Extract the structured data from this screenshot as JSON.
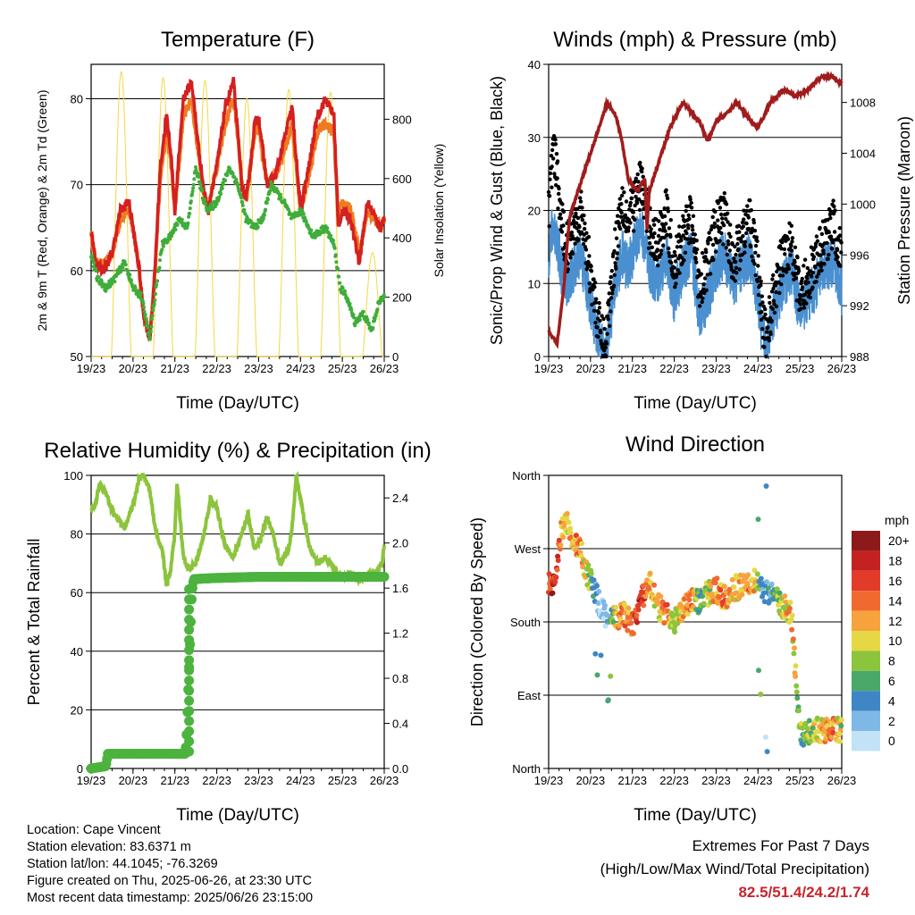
{
  "x_ticks": [
    "19/23",
    "20/23",
    "21/23",
    "22/23",
    "23/23",
    "24/23",
    "25/23",
    "26/23"
  ],
  "x_label": "Time (Day/UTC)",
  "info": {
    "location": "Location: Cape Vincent",
    "elevation": "Station elevation: 83.6371 m",
    "latlon": "Station lat/lon: 44.1045; -76.3269",
    "created": "Figure created on Thu, 2025-06-26, at 23:30 UTC",
    "recent": "Most recent data timestamp: 2025/06/26 23:15:00"
  },
  "extremes": {
    "title": "Extremes For Past 7 Days",
    "subtitle": "(High/Low/Max Wind/Total Precipitation)",
    "values": "82.5/51.4/24.2/1.74"
  },
  "colors": {
    "temp2m": "#d42020",
    "temp9m": "#f07a20",
    "dewpoint": "#3fad3a",
    "solar": "#f5d742",
    "wind": "#4a90d0",
    "gust": "#000000",
    "pressure": "#a01c1c",
    "rh": "#8cc43c",
    "precip": "#4cb33e",
    "extremes": "#c8242b"
  },
  "chart_data": [
    {
      "type": "line",
      "title": "Temperature (F)",
      "xlabel": "Time (Day/UTC)",
      "ylabel": "2m & 9m T (Red, Orange) & 2m Td (Green)",
      "ylabel_right": "Solar Insolation (Yellow)",
      "ylim": [
        50,
        84
      ],
      "yticks": [
        50,
        60,
        70,
        80
      ],
      "ylim_right": [
        0,
        985
      ],
      "yticks_right": [
        0,
        200,
        400,
        600,
        800
      ],
      "x_range_days": [
        0,
        7
      ],
      "grid": true,
      "series": [
        {
          "name": "2m T",
          "axis": "left",
          "x": [
            0,
            0.1,
            0.3,
            0.5,
            0.7,
            0.9,
            1.0,
            1.15,
            1.25,
            1.4,
            1.5,
            1.65,
            1.8,
            1.9,
            2.0,
            2.2,
            2.4,
            2.55,
            2.7,
            2.8,
            2.9,
            3.0,
            3.2,
            3.4,
            3.5,
            3.6,
            3.7,
            3.8,
            3.9,
            4.0,
            4.2,
            4.4,
            4.6,
            4.8,
            4.9,
            5.0,
            5.2,
            5.4,
            5.6,
            5.8,
            5.9,
            6.0,
            6.2,
            6.4,
            6.6,
            6.8,
            6.9,
            7.0
          ],
          "values": [
            65,
            61,
            60,
            62,
            67,
            68,
            65,
            60,
            55,
            52,
            58,
            72,
            78,
            74,
            67,
            80,
            82,
            75,
            69,
            67,
            70,
            72,
            79,
            82,
            76,
            70,
            68,
            72,
            77,
            78,
            70,
            71,
            75,
            79,
            73,
            67,
            72,
            78,
            80,
            78,
            65,
            67,
            66,
            61,
            68,
            66,
            65,
            66
          ]
        },
        {
          "name": "9m T",
          "axis": "left",
          "x": [
            0,
            0.1,
            0.3,
            0.5,
            0.7,
            0.9,
            1.0,
            1.15,
            1.25,
            1.4,
            1.5,
            1.65,
            1.8,
            1.9,
            2.0,
            2.2,
            2.4,
            2.55,
            2.7,
            2.8,
            2.9,
            3.0,
            3.2,
            3.4,
            3.5,
            3.6,
            3.7,
            3.8,
            3.9,
            4.0,
            4.2,
            4.4,
            4.6,
            4.8,
            4.9,
            5.0,
            5.2,
            5.4,
            5.6,
            5.8,
            5.9,
            6.0,
            6.2,
            6.4,
            6.6,
            6.8,
            6.9,
            7.0
          ],
          "values": [
            64.5,
            61,
            60.5,
            62,
            66,
            67,
            65,
            60,
            55,
            52,
            58,
            71,
            76,
            73,
            67,
            78,
            80,
            74,
            69,
            67,
            70,
            72,
            77,
            80,
            76,
            70,
            68,
            72,
            76,
            77,
            70,
            71,
            74,
            77,
            72,
            67,
            71,
            76,
            77,
            76,
            66,
            68,
            67,
            62,
            67,
            66,
            65,
            66
          ]
        },
        {
          "name": "2m Td",
          "axis": "left",
          "x": [
            0,
            0.15,
            0.35,
            0.55,
            0.8,
            1.0,
            1.2,
            1.4,
            1.55,
            1.7,
            1.9,
            2.1,
            2.3,
            2.5,
            2.6,
            2.7,
            2.8,
            3.0,
            3.3,
            3.5,
            3.7,
            3.9,
            4.1,
            4.3,
            4.6,
            4.8,
            5.0,
            5.3,
            5.6,
            5.8,
            5.95,
            6.1,
            6.3,
            6.5,
            6.7,
            6.85,
            7.0
          ],
          "values": [
            62,
            59,
            58,
            59,
            61,
            58,
            57,
            52,
            58,
            63,
            64,
            66,
            65,
            72,
            70,
            68,
            67,
            68,
            72,
            70,
            66,
            65,
            66,
            70,
            68,
            66,
            67,
            64,
            65,
            63,
            58,
            57,
            54,
            55,
            53,
            56,
            57
          ]
        },
        {
          "name": "Solar Insolation",
          "axis": "right",
          "peak_x": [
            0.72,
            1.72,
            2.72,
            3.72,
            4.72,
            5.72,
            6.72
          ],
          "peak_values": [
            960,
            940,
            930,
            870,
            900,
            890,
            350
          ]
        }
      ]
    },
    {
      "type": "scatter",
      "title": "Winds (mph) & Pressure (mb)",
      "xlabel": "Time (Day/UTC)",
      "ylabel": "Sonic/Prop Wind & Gust (Blue, Black)",
      "ylabel_right": "Station Pressure (Maroon)",
      "ylim": [
        0,
        40
      ],
      "yticks": [
        0,
        10,
        20,
        30,
        40
      ],
      "ylim_right": [
        988,
        1011
      ],
      "yticks_right": [
        988,
        992,
        996,
        1000,
        1004,
        1008
      ],
      "x_range_days": [
        0,
        7
      ],
      "grid": true,
      "series": [
        {
          "name": "Wind",
          "axis": "left",
          "x": [
            0,
            0.1,
            0.2,
            0.3,
            0.45,
            0.6,
            0.75,
            0.9,
            1.05,
            1.2,
            1.35,
            1.5,
            1.6,
            1.75,
            1.9,
            2.0,
            2.2,
            2.4,
            2.6,
            2.8,
            3.0,
            3.2,
            3.4,
            3.6,
            3.8,
            4.0,
            4.2,
            4.4,
            4.6,
            4.8,
            5.0,
            5.1,
            5.2,
            5.4,
            5.6,
            5.8,
            6.0,
            6.2,
            6.4,
            6.6,
            6.8,
            7.0
          ],
          "values": [
            14,
            18,
            16,
            12,
            10,
            12,
            14,
            10,
            6,
            2,
            0,
            6,
            10,
            14,
            12,
            14,
            18,
            12,
            10,
            14,
            8,
            12,
            14,
            6,
            8,
            12,
            14,
            10,
            12,
            14,
            8,
            3,
            2,
            6,
            10,
            12,
            6,
            8,
            10,
            12,
            13,
            9
          ]
        },
        {
          "name": "Gust",
          "axis": "left",
          "x": [
            0,
            0.1,
            0.2,
            0.3,
            0.45,
            0.6,
            0.75,
            0.9,
            1.05,
            1.2,
            1.35,
            1.5,
            1.6,
            1.75,
            1.9,
            2.0,
            2.2,
            2.4,
            2.6,
            2.8,
            3.0,
            3.2,
            3.4,
            3.6,
            3.8,
            4.0,
            4.2,
            4.4,
            4.6,
            4.8,
            5.0,
            5.1,
            5.2,
            5.4,
            5.6,
            5.8,
            6.0,
            6.2,
            6.4,
            6.6,
            6.8,
            7.0
          ],
          "values": [
            20,
            28,
            25,
            18,
            15,
            18,
            20,
            15,
            10,
            4,
            1,
            10,
            15,
            22,
            18,
            20,
            24,
            18,
            15,
            20,
            12,
            16,
            19,
            10,
            13,
            18,
            19,
            13,
            16,
            19,
            12,
            5,
            3,
            9,
            14,
            16,
            8,
            11,
            13,
            16,
            18,
            13
          ]
        },
        {
          "name": "Station Pressure",
          "axis": "right",
          "x": [
            0,
            0.2,
            0.35,
            0.5,
            0.8,
            1.1,
            1.4,
            1.6,
            1.75,
            1.9,
            2.1,
            2.3,
            2.35,
            2.4,
            2.6,
            2.9,
            3.2,
            3.6,
            3.8,
            4.0,
            4.2,
            4.5,
            4.7,
            5.0,
            5.3,
            5.6,
            5.9,
            6.2,
            6.5,
            6.8,
            7.0
          ],
          "values": [
            990,
            989,
            993,
            999,
            1002,
            1005,
            1008,
            1007,
            1005,
            1002,
            1001,
            1002,
            998,
            1001,
            1003,
            1006,
            1008,
            1006.5,
            1005,
            1006.5,
            1007,
            1008,
            1007,
            1006,
            1008,
            1009,
            1008.5,
            1009,
            1010,
            1010,
            1009.5
          ]
        }
      ]
    },
    {
      "type": "line",
      "title": "Relative Humidity (%) & Precipitation (in)",
      "xlabel": "Time (Day/UTC)",
      "ylabel": "Percent & Total Rainfall",
      "ylim": [
        0,
        100
      ],
      "yticks": [
        0,
        20,
        40,
        60,
        80,
        100
      ],
      "ylim_right": [
        0,
        2.6
      ],
      "yticks_right": [
        0.0,
        0.4,
        0.8,
        1.2,
        1.6,
        2.0,
        2.4
      ],
      "x_range_days": [
        0,
        7
      ],
      "grid": true,
      "series": [
        {
          "name": "Relative Humidity",
          "axis": "left",
          "x": [
            0,
            0.1,
            0.2,
            0.35,
            0.5,
            0.65,
            0.8,
            1.0,
            1.15,
            1.25,
            1.4,
            1.55,
            1.7,
            1.8,
            1.9,
            2.0,
            2.05,
            2.1,
            2.2,
            2.35,
            2.5,
            2.7,
            2.85,
            3.0,
            3.2,
            3.4,
            3.6,
            3.75,
            3.9,
            4.05,
            4.2,
            4.35,
            4.5,
            4.7,
            4.8,
            4.9,
            5.0,
            5.2,
            5.4,
            5.6,
            5.8,
            6.0,
            6.2,
            6.4,
            6.6,
            6.8,
            6.95,
            7.0
          ],
          "values": [
            88,
            90,
            97,
            94,
            88,
            85,
            82,
            90,
            99,
            100,
            95,
            80,
            75,
            62,
            68,
            80,
            97,
            90,
            72,
            68,
            70,
            80,
            92,
            89,
            76,
            72,
            80,
            87,
            75,
            78,
            86,
            80,
            70,
            74,
            82,
            100,
            92,
            76,
            70,
            72,
            68,
            65,
            67,
            64,
            66,
            67,
            70,
            76
          ]
        },
        {
          "name": "Total Rainfall",
          "axis": "right",
          "x": [
            0,
            0.35,
            0.4,
            1.0,
            2.0,
            2.25,
            2.28,
            2.3,
            2.32,
            2.34,
            2.36,
            2.38,
            2.4,
            2.42,
            2.45,
            3.0,
            4.0,
            5.0,
            6.0,
            7.0
          ],
          "values": [
            0,
            0.02,
            0.13,
            0.13,
            0.13,
            0.13,
            0.3,
            0.5,
            0.7,
            0.9,
            1.1,
            1.3,
            1.5,
            1.6,
            1.68,
            1.69,
            1.7,
            1.7,
            1.7,
            1.7
          ]
        }
      ]
    },
    {
      "type": "scatter",
      "title": "Wind Direction",
      "xlabel": "Time (Day/UTC)",
      "ylabel": "Direction (Colored By Speed)",
      "yticks": [
        "North",
        "East",
        "South",
        "West",
        "North"
      ],
      "yticks_deg": [
        0,
        90,
        180,
        270,
        360
      ],
      "ylim": [
        0,
        360
      ],
      "x_range_days": [
        0,
        7
      ],
      "grid": true,
      "colorbar": {
        "title": "mph",
        "labels": [
          "20+",
          "18",
          "16",
          "14",
          "12",
          "10",
          "8",
          "6",
          "4",
          "2",
          "0"
        ],
        "colors": [
          "#8c1a1a",
          "#c42121",
          "#e23b2a",
          "#f06a30",
          "#f6a33e",
          "#e6d845",
          "#8cc43c",
          "#4aa868",
          "#3f86c4",
          "#7fb8e6",
          "#c2e2f6"
        ]
      },
      "series": [
        {
          "name": "Direction",
          "x": [
            0,
            0.15,
            0.3,
            0.45,
            0.6,
            0.75,
            0.9,
            1.0,
            1.2,
            1.4,
            1.6,
            1.8,
            2.0,
            2.2,
            2.4,
            2.6,
            2.8,
            3.0,
            3.2,
            3.4,
            3.6,
            3.8,
            4.0,
            4.2,
            4.4,
            4.6,
            4.8,
            5.0,
            5.2,
            5.4,
            5.6,
            5.8,
            6.0,
            6.2,
            6.4,
            6.6,
            6.8,
            7.0
          ],
          "values": [
            230,
            225,
            290,
            300,
            280,
            270,
            240,
            230,
            205,
            180,
            185,
            190,
            175,
            205,
            230,
            200,
            190,
            180,
            195,
            210,
            205,
            215,
            220,
            210,
            220,
            225,
            230,
            230,
            215,
            210,
            200,
            190,
            40,
            45,
            50,
            45,
            50,
            45
          ]
        }
      ]
    }
  ],
  "titles": {
    "temp": "Temperature (F)",
    "wind": "Winds (mph) & Pressure (mb)",
    "rh": "Relative Humidity (%) & Precipitation (in)",
    "dir": "Wind Direction"
  }
}
